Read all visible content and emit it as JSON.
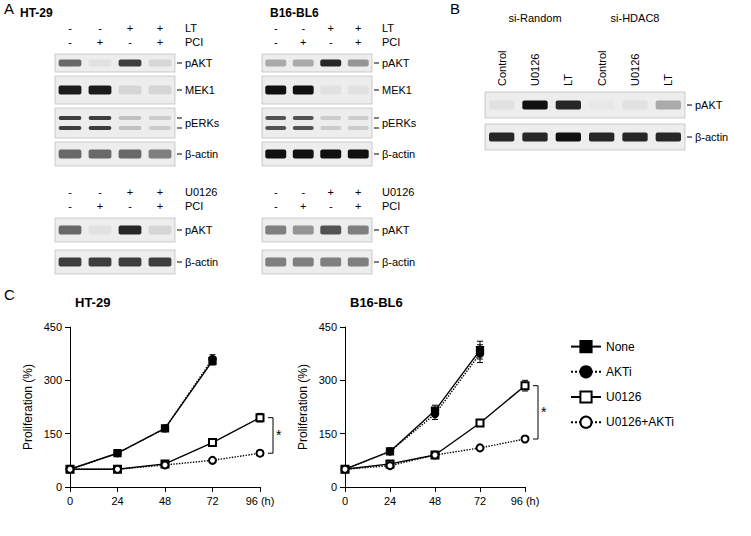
{
  "panel_labels": [
    "A",
    "B",
    "C"
  ],
  "blots": [
    {
      "title": "HT-29",
      "treatments": [
        {
          "name": "LT",
          "signs": [
            "-",
            "-",
            "+",
            "+"
          ]
        },
        {
          "name": "PCI",
          "signs": [
            "-",
            "+",
            "-",
            "+"
          ]
        }
      ],
      "rows": [
        {
          "label": "pAKT",
          "bands": [
            0.6,
            0.05,
            0.8,
            0.1
          ]
        },
        {
          "label": "MEK1",
          "bands": [
            0.95,
            0.95,
            0.1,
            0.1
          ]
        },
        {
          "label": "pERKs",
          "bands": [
            [
              0.8,
              0.8
            ],
            [
              0.8,
              0.8
            ],
            [
              0.2,
              0.2
            ],
            [
              0.15,
              0.15
            ]
          ]
        },
        {
          "label": "β-actin",
          "bands": [
            0.6,
            0.6,
            0.6,
            0.5
          ]
        }
      ]
    },
    {
      "title": "B16-BL6",
      "treatments": [
        {
          "name": "LT",
          "signs": [
            "-",
            "-",
            "+",
            "+"
          ]
        },
        {
          "name": "PCI",
          "signs": [
            "-",
            "+",
            "-",
            "+"
          ]
        }
      ],
      "rows": [
        {
          "label": "pAKT",
          "bands": [
            0.3,
            0.3,
            0.9,
            0.4
          ]
        },
        {
          "label": "MEK1",
          "bands": [
            1,
            1,
            0.05,
            0.05
          ]
        },
        {
          "label": "pERKs",
          "bands": [
            [
              0.7,
              0.7
            ],
            [
              0.7,
              0.7
            ],
            [
              0.15,
              0.15
            ],
            [
              0.15,
              0.15
            ]
          ]
        },
        {
          "label": "β-actin",
          "bands": [
            1,
            1,
            1,
            1
          ]
        }
      ]
    },
    {
      "treatments": [
        {
          "name": "U0126",
          "signs": [
            "-",
            "-",
            "+",
            "+"
          ]
        },
        {
          "name": "PCI",
          "signs": [
            "-",
            "+",
            "-",
            "+"
          ]
        }
      ],
      "rows": [
        {
          "label": "pAKT",
          "bands": [
            0.6,
            0.05,
            0.9,
            0.1
          ]
        },
        {
          "label": "β-actin",
          "bands": [
            0.8,
            0.8,
            0.8,
            0.8
          ]
        }
      ]
    },
    {
      "treatments": [
        {
          "name": "U0126",
          "signs": [
            "-",
            "-",
            "+",
            "+"
          ]
        },
        {
          "name": "PCI",
          "signs": [
            "-",
            "+",
            "-",
            "+"
          ]
        }
      ],
      "rows": [
        {
          "label": "pAKT",
          "bands": [
            0.5,
            0.4,
            0.7,
            0.5
          ]
        },
        {
          "label": "β-actin",
          "bands": [
            0.5,
            0.5,
            0.5,
            0.5
          ]
        }
      ]
    }
  ],
  "panel_B": {
    "groups": [
      {
        "label": "si-Random",
        "lanes": [
          "Control",
          "U0126",
          "LT"
        ]
      },
      {
        "label": "si-HDAC8",
        "lanes": [
          "Control",
          "U0126",
          "LT"
        ]
      }
    ],
    "rows": [
      {
        "label": "pAKT",
        "bands": [
          0.05,
          1,
          0.9,
          0.02,
          0.05,
          0.3
        ]
      },
      {
        "label": "β-actin",
        "bands": [
          0.9,
          0.9,
          1,
          0.9,
          0.9,
          0.9
        ]
      }
    ]
  },
  "chart_data": [
    {
      "type": "line",
      "title": "HT-29",
      "y_label": "Proliferation (%)",
      "x": [
        0,
        24,
        48,
        72,
        96
      ],
      "xlim": [
        0,
        96
      ],
      "xticks": [
        0,
        24,
        48,
        72,
        {
          "value": 96,
          "label": "96 (h)"
        }
      ],
      "ylim": [
        0,
        450
      ],
      "yticks": [
        0,
        150,
        300,
        450
      ],
      "series": [
        {
          "name": "None",
          "color": "#000000",
          "marker": "square",
          "line_style": "solid",
          "values": [
            50,
            95,
            165,
            355,
            null
          ],
          "errors": [
            3,
            5,
            8,
            12,
            null
          ]
        },
        {
          "name": "AKTi",
          "color": "#000000",
          "marker": "circle",
          "line_style": "dotted",
          "values": [
            50,
            95,
            165,
            360,
            null
          ],
          "errors": [
            3,
            5,
            8,
            12,
            null
          ]
        },
        {
          "name": "U0126",
          "color": "#000000",
          "marker": "open_square",
          "line_style": "solid",
          "values": [
            50,
            50,
            65,
            125,
            195
          ],
          "errors": [
            3,
            4,
            5,
            8,
            12
          ]
        },
        {
          "name": "U0126+AKTi",
          "color": "#000000",
          "marker": "open_circle",
          "line_style": "dotted",
          "values": [
            50,
            50,
            62,
            75,
            95
          ],
          "errors": [
            3,
            4,
            5,
            5,
            6
          ]
        }
      ],
      "annotations": [
        {
          "text": "*",
          "x": 96,
          "between": [
            "U0126",
            "U0126+AKTi"
          ]
        }
      ]
    },
    {
      "type": "line",
      "title": "B16-BL6",
      "y_label": "Proliferation (%)",
      "legend": "right",
      "x": [
        0,
        24,
        48,
        72,
        96
      ],
      "xlim": [
        0,
        96
      ],
      "xticks": [
        0,
        24,
        48,
        72,
        {
          "value": 96,
          "label": "96 (h)"
        }
      ],
      "ylim": [
        0,
        450
      ],
      "yticks": [
        0,
        150,
        300,
        450
      ],
      "series": [
        {
          "name": "None",
          "color": "#000000",
          "marker": "square",
          "line_style": "solid",
          "values": [
            50,
            100,
            215,
            385,
            null
          ],
          "errors": [
            3,
            6,
            15,
            25,
            null
          ]
        },
        {
          "name": "AKTi",
          "color": "#000000",
          "marker": "circle",
          "line_style": "dotted",
          "values": [
            50,
            100,
            205,
            375,
            null
          ],
          "errors": [
            3,
            6,
            15,
            25,
            null
          ]
        },
        {
          "name": "U0126",
          "color": "#000000",
          "marker": "open_square",
          "line_style": "solid",
          "values": [
            50,
            65,
            90,
            180,
            285
          ],
          "errors": [
            3,
            4,
            6,
            8,
            15
          ]
        },
        {
          "name": "U0126+AKTi",
          "color": "#000000",
          "marker": "open_circle",
          "line_style": "dotted",
          "values": [
            50,
            60,
            90,
            110,
            135
          ],
          "errors": [
            3,
            4,
            5,
            6,
            6
          ]
        }
      ],
      "annotations": [
        {
          "text": "*",
          "x": 96,
          "between": [
            "U0126",
            "U0126+AKTi"
          ]
        }
      ]
    }
  ]
}
